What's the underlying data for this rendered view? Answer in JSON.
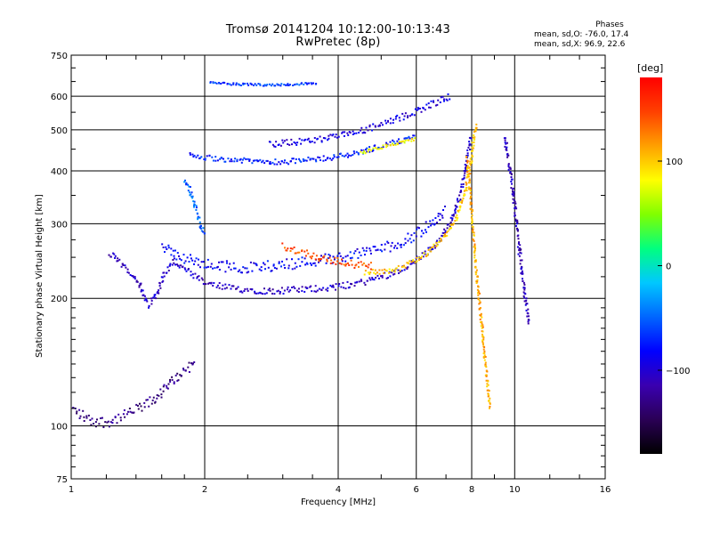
{
  "chart_data": {
    "type": "scatter",
    "title": "Tromsø 20141204 10:12:00-10:13:43",
    "subtitle": "RwPretec (8p)",
    "xlabel": "Frequency [MHz]",
    "ylabel": "Stationary phase Virtual Height [km]",
    "xscale": "log",
    "yscale": "log",
    "xlim": [
      1,
      16
    ],
    "ylim": [
      75,
      750
    ],
    "xticks": [
      1,
      2,
      4,
      6,
      8,
      10,
      16
    ],
    "yticks": [
      75,
      100,
      200,
      300,
      400,
      500,
      600,
      750
    ],
    "grid": true,
    "phase_stats": {
      "title": "Phases",
      "o_line": "mean, sd,O: -76.0, 17.4",
      "x_line": "mean, sd,X:  96.9, 22.6"
    },
    "colorbar": {
      "label": "[deg]",
      "range": [
        -180,
        180
      ],
      "ticks": [
        100,
        0,
        -100
      ],
      "tick_labels": [
        "100",
        "0",
        "−100"
      ],
      "colors": [
        "#000000",
        "#2a0055",
        "#3a00b0",
        "#0000ff",
        "#0066ff",
        "#00c8ff",
        "#00ff80",
        "#80ff00",
        "#ffff00",
        "#ffa000",
        "#ff4000",
        "#ff0000"
      ]
    },
    "series": [
      {
        "trace": [
          [
            1.0,
            110
          ],
          [
            1.1,
            103
          ],
          [
            1.2,
            102
          ],
          [
            1.3,
            105
          ],
          [
            1.4,
            109
          ],
          [
            1.5,
            113
          ],
          [
            1.6,
            120
          ],
          [
            1.7,
            128
          ],
          [
            1.8,
            135
          ],
          [
            1.9,
            142
          ]
        ],
        "phase": -130,
        "spread": 0.03
      },
      {
        "trace": [
          [
            1.22,
            255
          ],
          [
            1.3,
            240
          ],
          [
            1.38,
            228
          ],
          [
            1.43,
            215
          ],
          [
            1.46,
            200
          ],
          [
            1.5,
            193
          ],
          [
            1.55,
            203
          ],
          [
            1.62,
            228
          ],
          [
            1.7,
            245
          ],
          [
            1.82,
            232
          ],
          [
            2.0,
            217
          ],
          [
            2.3,
            211
          ],
          [
            2.8,
            208
          ],
          [
            3.4,
            210
          ],
          [
            4.0,
            213
          ],
          [
            4.6,
            219
          ],
          [
            5.2,
            228
          ],
          [
            5.8,
            240
          ],
          [
            6.3,
            255
          ],
          [
            6.8,
            275
          ],
          [
            7.2,
            305
          ],
          [
            7.5,
            345
          ],
          [
            7.7,
            390
          ],
          [
            7.85,
            440
          ],
          [
            7.95,
            480
          ]
        ],
        "phase": -105,
        "spread": 0.018
      },
      {
        "trace": [
          [
            1.6,
            265
          ],
          [
            1.8,
            248
          ],
          [
            2.0,
            240
          ],
          [
            2.5,
            236
          ],
          [
            3.0,
            240
          ],
          [
            3.5,
            245
          ],
          [
            4.0,
            250
          ],
          [
            4.5,
            256
          ],
          [
            5.0,
            262
          ],
          [
            5.5,
            270
          ],
          [
            6.0,
            283
          ],
          [
            6.5,
            300
          ],
          [
            7.0,
            325
          ]
        ],
        "phase": -85,
        "spread": 0.03
      },
      {
        "trace": [
          [
            4.6,
            230
          ],
          [
            5.2,
            232
          ],
          [
            5.6,
            237
          ],
          [
            6.0,
            246
          ],
          [
            6.5,
            260
          ],
          [
            7.0,
            282
          ],
          [
            7.4,
            312
          ],
          [
            7.7,
            350
          ],
          [
            7.9,
            395
          ],
          [
            8.0,
            435
          ],
          [
            8.1,
            480
          ],
          [
            8.2,
            520
          ]
        ],
        "phase": 100,
        "spread": 0.014
      },
      {
        "trace": [
          [
            3.0,
            265
          ],
          [
            3.3,
            258
          ],
          [
            3.6,
            250
          ],
          [
            4.0,
            244
          ],
          [
            4.4,
            240
          ],
          [
            4.8,
            238
          ]
        ],
        "phase": 140,
        "spread": 0.02
      },
      {
        "trace": [
          [
            1.85,
            435
          ],
          [
            2.0,
            430
          ],
          [
            2.5,
            422
          ],
          [
            3.0,
            420
          ],
          [
            3.5,
            425
          ],
          [
            4.0,
            432
          ],
          [
            4.5,
            443
          ],
          [
            5.0,
            458
          ],
          [
            5.5,
            470
          ],
          [
            6.0,
            480
          ]
        ],
        "phase": -75,
        "spread": 0.014
      },
      {
        "trace": [
          [
            2.8,
            462
          ],
          [
            3.4,
            470
          ],
          [
            4.0,
            482
          ],
          [
            4.6,
            500
          ],
          [
            5.2,
            520
          ],
          [
            5.8,
            545
          ],
          [
            6.5,
            575
          ],
          [
            7.2,
            600
          ]
        ],
        "phase": -95,
        "spread": 0.018
      },
      {
        "trace": [
          [
            4.5,
            440
          ],
          [
            5.0,
            455
          ],
          [
            5.5,
            465
          ],
          [
            6.0,
            478
          ]
        ],
        "phase": 80,
        "spread": 0.01
      },
      {
        "trace": [
          [
            2.05,
            645
          ],
          [
            2.4,
            640
          ],
          [
            2.8,
            638
          ],
          [
            3.2,
            640
          ],
          [
            3.6,
            645
          ]
        ],
        "phase": -60,
        "spread": 0.006
      },
      {
        "trace": [
          [
            7.8,
            430
          ],
          [
            7.95,
            350
          ],
          [
            8.05,
            290
          ],
          [
            8.2,
            230
          ],
          [
            8.4,
            180
          ],
          [
            8.6,
            140
          ],
          [
            8.8,
            110
          ]
        ],
        "phase": 110,
        "spread": 0.012
      },
      {
        "trace": [
          [
            9.5,
            480
          ],
          [
            9.7,
            420
          ],
          [
            9.9,
            360
          ],
          [
            10.1,
            300
          ],
          [
            10.3,
            250
          ],
          [
            10.5,
            210
          ],
          [
            10.8,
            175
          ]
        ],
        "phase": -110,
        "spread": 0.03
      },
      {
        "trace": [
          [
            1.8,
            380
          ],
          [
            1.85,
            360
          ],
          [
            1.9,
            330
          ],
          [
            1.95,
            300
          ],
          [
            2.0,
            280
          ]
        ],
        "phase": -50,
        "spread": 0.02
      }
    ]
  }
}
